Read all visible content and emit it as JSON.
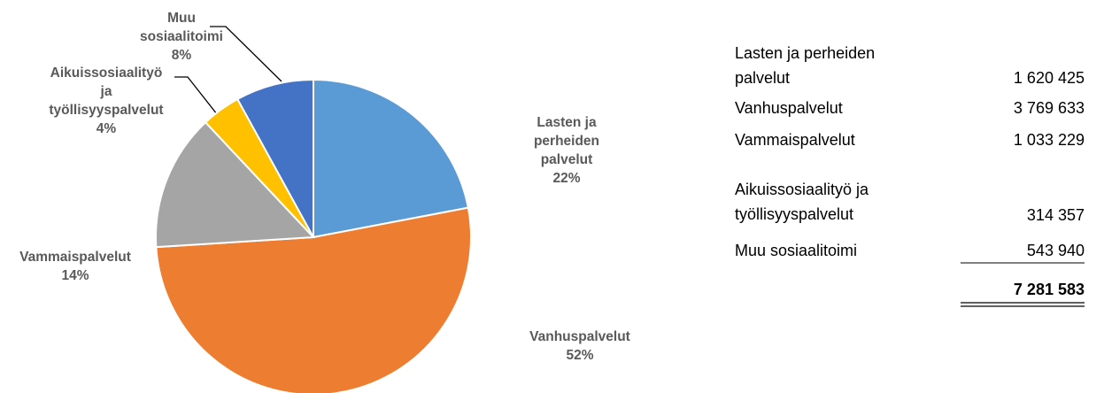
{
  "chart_data": {
    "type": "pie",
    "categories": [
      "Lasten ja perheiden palvelut",
      "Vanhuspalvelut",
      "Vammaispalvelut",
      "Aikuissosiaalityö ja työllisyyspalvelut",
      "Muu sosiaalitoimi"
    ],
    "values": [
      22,
      52,
      14,
      4,
      8
    ],
    "value_labels": [
      "22%",
      "52%",
      "14%",
      "4%",
      "8%"
    ],
    "colors": [
      "#5b9bd5",
      "#ed7d31",
      "#a5a5a5",
      "#ffc000",
      "#4472c4"
    ]
  },
  "table": {
    "rows": [
      [
        "Lasten ja perheiden palvelut",
        "1 620 425"
      ],
      [
        "Vanhuspalvelut",
        "3 769 633"
      ],
      [
        "Vammaispalvelut",
        "1 033 229"
      ],
      [
        "Aikuissosiaalityö ja työllisyyspalvelut",
        "314 357"
      ],
      [
        "Muu sosiaalitoimi",
        "543 940"
      ]
    ],
    "total": "7 281 583"
  }
}
